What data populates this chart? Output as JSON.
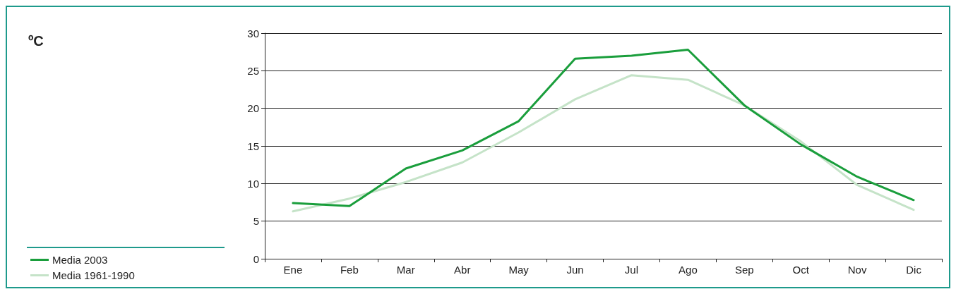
{
  "chart_data": {
    "type": "line",
    "annotations": [
      "ºC"
    ],
    "categories": [
      "Ene",
      "Feb",
      "Mar",
      "Abr",
      "May",
      "Jun",
      "Jul",
      "Ago",
      "Sep",
      "Oct",
      "Nov",
      "Dic"
    ],
    "series": [
      {
        "name": "Media 2003",
        "color": "#1a9e3c",
        "values": [
          7.4,
          7.0,
          12.0,
          14.4,
          18.3,
          26.6,
          27.0,
          27.8,
          20.4,
          15.2,
          10.9,
          7.8
        ]
      },
      {
        "name": "Media 1961-1990",
        "color": "#c5e3c8",
        "values": [
          6.3,
          8.0,
          10.2,
          12.8,
          16.8,
          21.2,
          24.4,
          23.8,
          20.4,
          15.6,
          9.8,
          6.5
        ]
      }
    ],
    "ylim": [
      0,
      30
    ],
    "yticks": [
      0,
      5,
      10,
      15,
      20,
      25,
      30
    ],
    "grid": "y",
    "legend": "bottom left",
    "marker": "none",
    "line_style": "solid"
  }
}
